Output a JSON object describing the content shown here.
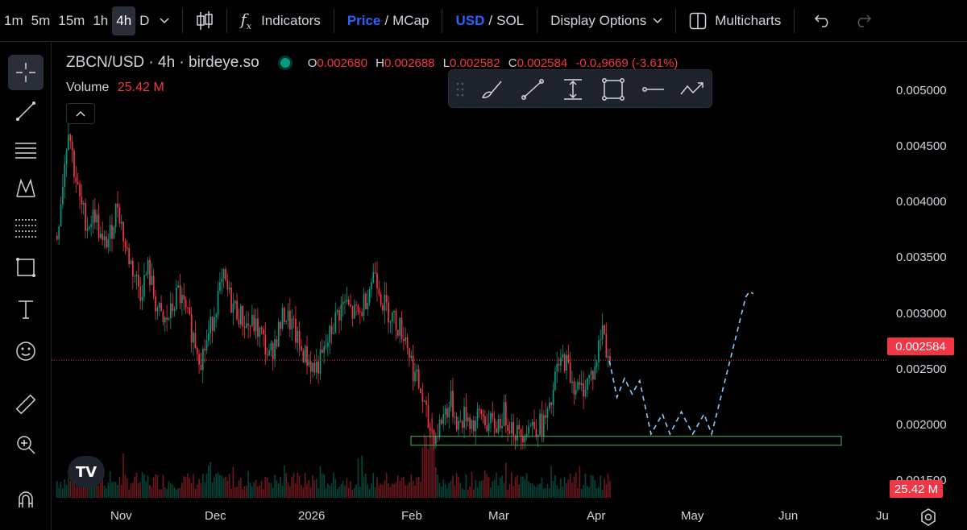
{
  "timeframes": [
    {
      "label": "1m",
      "active": false
    },
    {
      "label": "5m",
      "active": false
    },
    {
      "label": "15m",
      "active": false
    },
    {
      "label": "1h",
      "active": false
    },
    {
      "label": "4h",
      "active": true
    },
    {
      "label": "D",
      "active": false
    }
  ],
  "toolbar": {
    "indicators_label": "Indicators",
    "price_label": "Price",
    "slash": "/",
    "mcap_label": "MCap",
    "usd_label": "USD",
    "sol_label": "SOL",
    "display_options_label": "Display Options",
    "multicharts_label": "Multicharts"
  },
  "legend": {
    "symbol": "ZBCN/USD · 4h · birdeye.so",
    "o_label": "O",
    "o_value": "0.002680",
    "h_label": "H",
    "h_value": "0.002688",
    "l_label": "L",
    "l_value": "0.002582",
    "c_label": "C",
    "c_value": "0.002584",
    "change": "-0.0₄9669 (-3.61%)",
    "volume_label": "Volume",
    "volume_value": "25.42 M"
  },
  "price_axis": [
    "0.005000",
    "0.004500",
    "0.004000",
    "0.003500",
    "0.003000",
    "0.002500",
    "0.002000",
    "0.001500"
  ],
  "last_price": "0.002584",
  "volume_badge": "25.42 M",
  "time_axis": [
    "Nov",
    "Dec",
    "2026",
    "Feb",
    "Mar",
    "Apr",
    "May",
    "Jun",
    "Ju"
  ],
  "logo_text": "TV",
  "colors": {
    "up": "#089981",
    "down": "#f23645",
    "accent": "#2962ff",
    "zone": "#4caf50",
    "projection": "#90caf9"
  },
  "chart_data": {
    "type": "candlestick",
    "ylim": [
      0.0013,
      0.0052
    ],
    "support_zone": [
      0.00182,
      0.0019
    ],
    "last_price_line": 0.002584,
    "price_path": [
      [
        0,
        0.0037
      ],
      [
        3,
        0.0042
      ],
      [
        6,
        0.0047
      ],
      [
        9,
        0.0043
      ],
      [
        12,
        0.004
      ],
      [
        16,
        0.0038
      ],
      [
        20,
        0.0039
      ],
      [
        24,
        0.0036
      ],
      [
        28,
        0.0037
      ],
      [
        32,
        0.004
      ],
      [
        36,
        0.0036
      ],
      [
        40,
        0.0034
      ],
      [
        44,
        0.0032
      ],
      [
        48,
        0.0034
      ],
      [
        52,
        0.0031
      ],
      [
        56,
        0.0029
      ],
      [
        60,
        0.003
      ],
      [
        64,
        0.0032
      ],
      [
        68,
        0.003
      ],
      [
        72,
        0.0028
      ],
      [
        76,
        0.0026
      ],
      [
        80,
        0.0028
      ],
      [
        84,
        0.0031
      ],
      [
        88,
        0.0033
      ],
      [
        92,
        0.0031
      ],
      [
        96,
        0.003
      ],
      [
        100,
        0.0029
      ],
      [
        104,
        0.0029
      ],
      [
        108,
        0.0028
      ],
      [
        112,
        0.0026
      ],
      [
        116,
        0.0028
      ],
      [
        120,
        0.003
      ],
      [
        124,
        0.0029
      ],
      [
        128,
        0.0027
      ],
      [
        132,
        0.0026
      ],
      [
        136,
        0.0025
      ],
      [
        140,
        0.0026
      ],
      [
        144,
        0.0028
      ],
      [
        148,
        0.003
      ],
      [
        152,
        0.0031
      ],
      [
        156,
        0.003
      ],
      [
        160,
        0.003
      ],
      [
        164,
        0.0032
      ],
      [
        168,
        0.0034
      ],
      [
        172,
        0.0031
      ],
      [
        176,
        0.003
      ],
      [
        180,
        0.0029
      ],
      [
        184,
        0.0028
      ],
      [
        188,
        0.0025
      ],
      [
        192,
        0.0023
      ],
      [
        196,
        0.002
      ],
      [
        200,
        0.0019
      ],
      [
        204,
        0.0021
      ],
      [
        208,
        0.0022
      ],
      [
        212,
        0.002
      ],
      [
        216,
        0.0021
      ],
      [
        220,
        0.002
      ],
      [
        224,
        0.0021
      ],
      [
        228,
        0.002
      ],
      [
        232,
        0.002
      ],
      [
        236,
        0.0021
      ],
      [
        240,
        0.002
      ],
      [
        244,
        0.0019
      ],
      [
        248,
        0.002
      ],
      [
        252,
        0.002
      ],
      [
        256,
        0.002
      ],
      [
        260,
        0.0021
      ],
      [
        264,
        0.0025
      ],
      [
        268,
        0.0026
      ],
      [
        272,
        0.0024
      ],
      [
        276,
        0.0023
      ],
      [
        280,
        0.0024
      ],
      [
        284,
        0.0025
      ],
      [
        288,
        0.0029
      ],
      [
        290,
        0.0027
      ],
      [
        292,
        0.0026
      ]
    ],
    "projection": [
      [
        292,
        0.00258
      ],
      [
        296,
        0.00225
      ],
      [
        300,
        0.00242
      ],
      [
        304,
        0.00228
      ],
      [
        308,
        0.0024
      ],
      [
        314,
        0.00192
      ],
      [
        320,
        0.0021
      ],
      [
        324,
        0.00192
      ],
      [
        330,
        0.00212
      ],
      [
        336,
        0.00192
      ],
      [
        342,
        0.0021
      ],
      [
        346,
        0.00192
      ],
      [
        356,
        0.0026
      ],
      [
        364,
        0.00315
      ],
      [
        366,
        0.0032
      ],
      [
        368,
        0.00318
      ]
    ]
  }
}
